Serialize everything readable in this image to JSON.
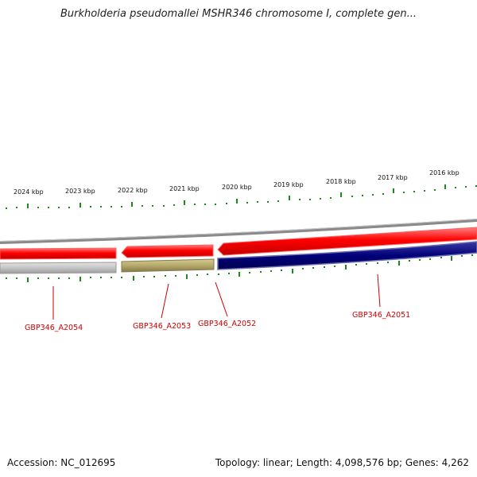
{
  "title": "Burkholderia pseudomallei MSHR346 chromosome I, complete gen...",
  "footer": {
    "accession": "Accession: NC_012695",
    "summary": "Topology: linear; Length: 4,098,576 bp; Genes: 4,262"
  },
  "ruler": {
    "ticks": [
      {
        "label": "2024 kbp"
      },
      {
        "label": "2023 kbp"
      },
      {
        "label": "2022 kbp"
      },
      {
        "label": "2021 kbp"
      },
      {
        "label": "2020 kbp"
      },
      {
        "label": "2019 kbp"
      },
      {
        "label": "2018 kbp"
      },
      {
        "label": "2017 kbp"
      },
      {
        "label": "2016 kbp"
      }
    ]
  },
  "genes": [
    {
      "label": "GBP346_A2054",
      "color": "#b8b8b8"
    },
    {
      "label": "GBP346_A2053",
      "color": "#b5a96b"
    },
    {
      "label": "GBP346_A2052",
      "color": "#ff0000"
    },
    {
      "label": "GBP346_A2051",
      "color": "#00007a"
    }
  ],
  "colors": {
    "forward_cds": "#ff0000",
    "tick": "#1a8a1a",
    "backbone": "#8a8a8a",
    "label": "#cc0000"
  }
}
